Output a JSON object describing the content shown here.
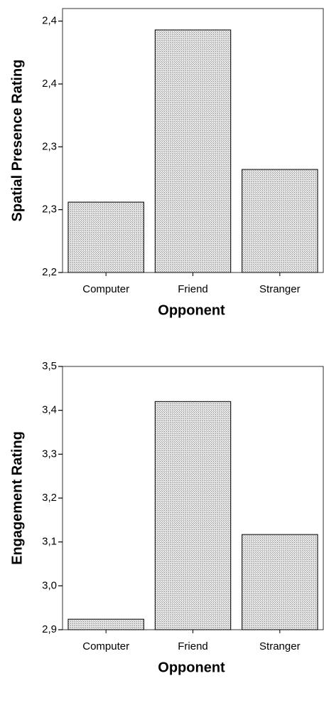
{
  "chart_data": [
    {
      "type": "bar",
      "x_label": "Opponent",
      "y_label": "Spatial Presence Rating",
      "categories": [
        "Computer",
        "Friend",
        "Stranger"
      ],
      "values": [
        2.256,
        2.393,
        2.282
      ],
      "ylim": [
        2.2,
        2.41
      ],
      "yticks": [
        {
          "value": 2.2,
          "label": "2,2"
        },
        {
          "value": 2.25,
          "label": "2,3"
        },
        {
          "value": 2.3,
          "label": "2,3"
        },
        {
          "value": 2.35,
          "label": "2,4"
        },
        {
          "value": 2.4,
          "label": "2,4"
        }
      ],
      "color": "#c8c8c8"
    },
    {
      "type": "bar",
      "x_label": "Opponent",
      "y_label": "Engagement Rating",
      "categories": [
        "Computer",
        "Friend",
        "Stranger"
      ],
      "values": [
        2.924,
        3.42,
        3.117
      ],
      "ylim": [
        2.9,
        3.5
      ],
      "yticks": [
        {
          "value": 2.9,
          "label": "2,9"
        },
        {
          "value": 3.0,
          "label": "3,0"
        },
        {
          "value": 3.1,
          "label": "3,1"
        },
        {
          "value": 3.2,
          "label": "3,2"
        },
        {
          "value": 3.3,
          "label": "3,3"
        },
        {
          "value": 3.4,
          "label": "3,4"
        },
        {
          "value": 3.5,
          "label": "3,5"
        }
      ],
      "color": "#c8c8c8"
    }
  ]
}
